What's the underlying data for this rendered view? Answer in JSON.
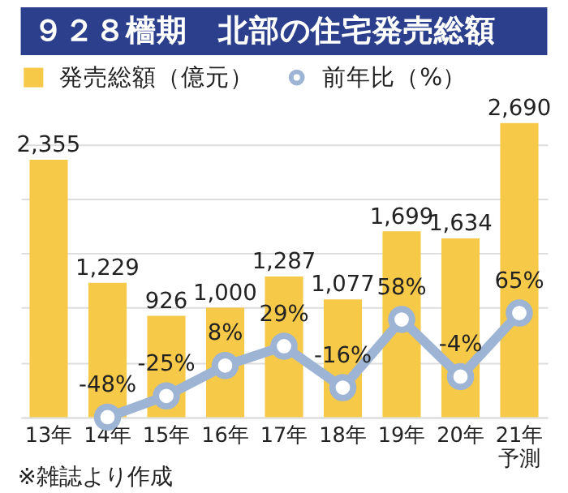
{
  "chart_data": {
    "type": "bar",
    "title": "９２８檣期　北部の住宅発売総額",
    "categories": [
      "13年",
      "14年",
      "15年",
      "16年",
      "17年",
      "18年",
      "19年",
      "20年",
      "21年予測"
    ],
    "series": [
      {
        "name": "発売総額（億元）",
        "color": "#f7c948",
        "values": [
          2355,
          1229,
          926,
          1000,
          1287,
          1077,
          1699,
          1634,
          2690
        ],
        "value_labels": [
          "2,355",
          "1,229",
          "926",
          "1,000",
          "1,287",
          "1,077",
          "1,699",
          "1,634",
          "2,690"
        ]
      },
      {
        "name": "前年比（%）",
        "type": "line",
        "axis": "y2",
        "color": "#9db4d4",
        "values": [
          null,
          -48,
          -25,
          8,
          29,
          -16,
          58,
          -4,
          65
        ],
        "value_labels": [
          null,
          "-48%",
          "-25%",
          "8%",
          "29%",
          "-16%",
          "58%",
          "-4%",
          "65%"
        ]
      }
    ],
    "grid": "y",
    "tick_labels": "x",
    "legend": "top left",
    "marker": "circle",
    "line_style": "solid",
    "annotations": [
      "※雑誌より作成"
    ]
  }
}
